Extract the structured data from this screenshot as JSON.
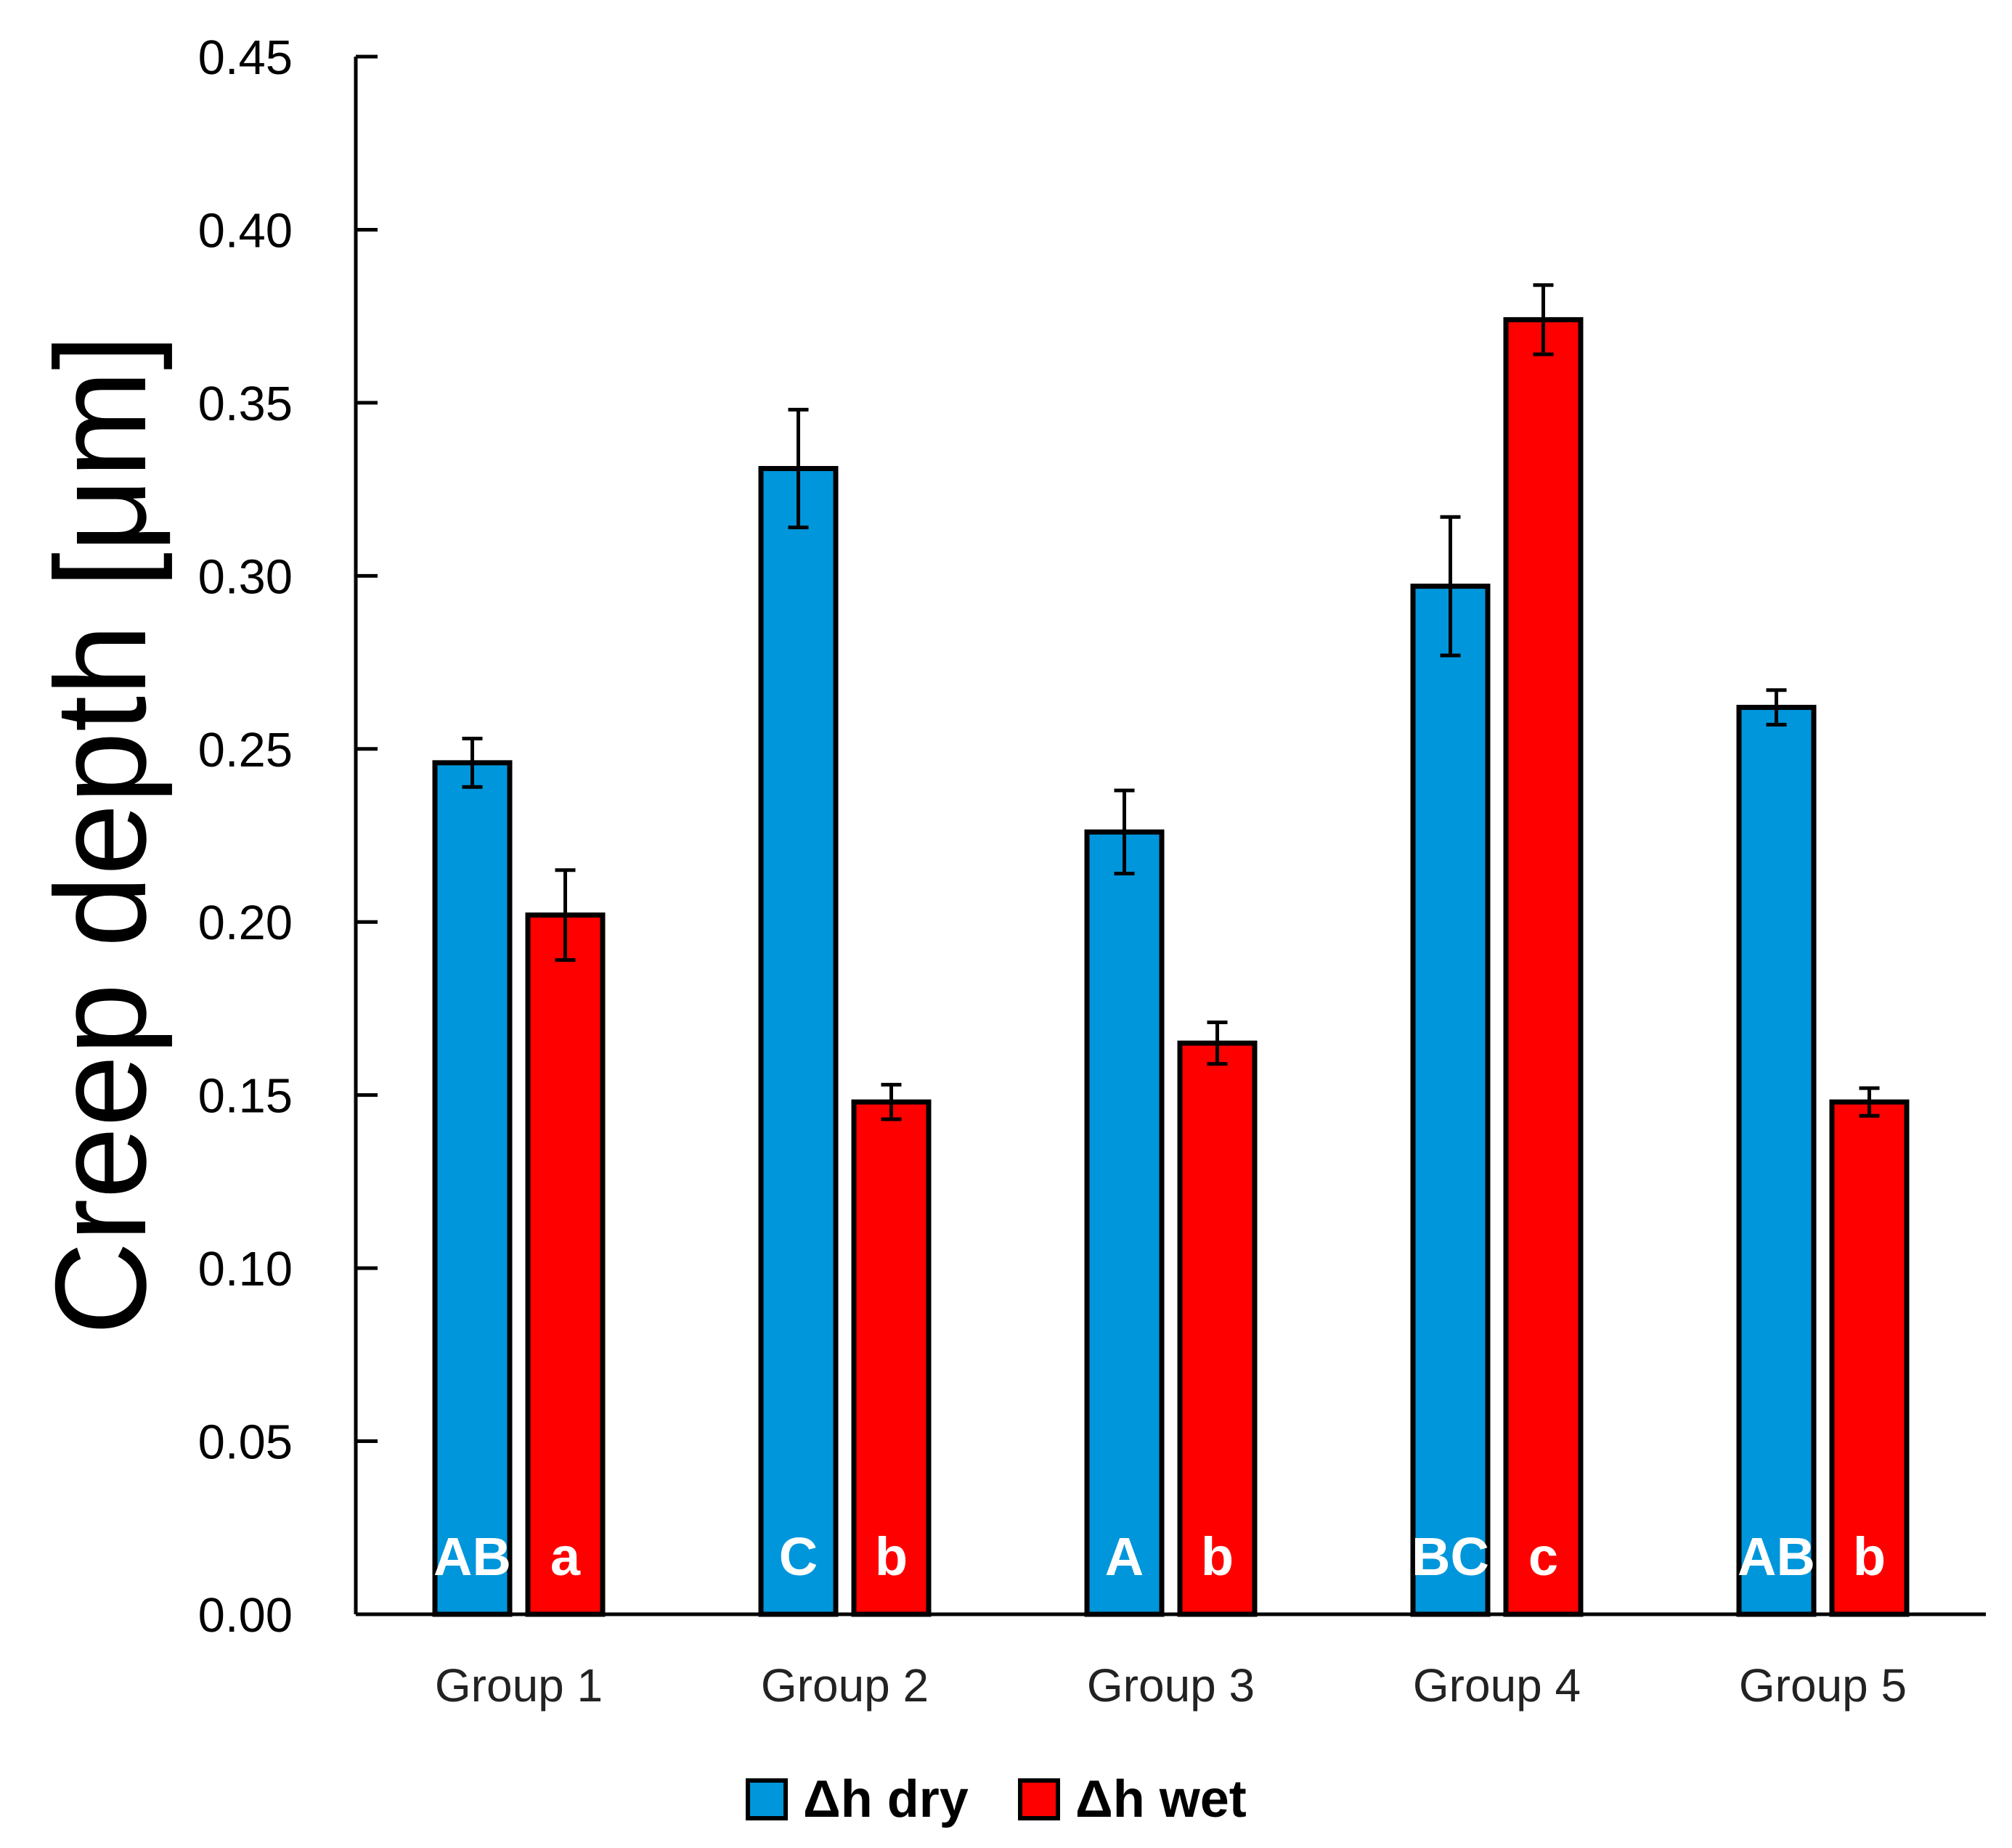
{
  "chart_data": {
    "type": "bar",
    "title": "",
    "xlabel": "",
    "ylabel": "Creep depth [μm]",
    "ylim": [
      0,
      0.45
    ],
    "yticks": [
      "0.00",
      "0.05",
      "0.10",
      "0.15",
      "0.20",
      "0.25",
      "0.30",
      "0.35",
      "0.40",
      "0.45"
    ],
    "categories": [
      "Group 1",
      "Group 2",
      "Group 3",
      "Group 4",
      "Group 5"
    ],
    "grid": false,
    "legend_position": "bottom",
    "series": [
      {
        "name": "Δh dry",
        "color": "#0096DB",
        "values": [
          0.246,
          0.331,
          0.226,
          0.297,
          0.262
        ],
        "errors": [
          0.007,
          0.017,
          0.012,
          0.02,
          0.005
        ],
        "letters": [
          "AB",
          "C",
          "A",
          "BC",
          "AB"
        ]
      },
      {
        "name": "Δh wet",
        "color": "#FF0000",
        "values": [
          0.202,
          0.148,
          0.165,
          0.374,
          0.148
        ],
        "errors": [
          0.013,
          0.005,
          0.006,
          0.01,
          0.004
        ],
        "letters": [
          "a",
          "b",
          "b",
          "c",
          "b"
        ]
      }
    ]
  }
}
